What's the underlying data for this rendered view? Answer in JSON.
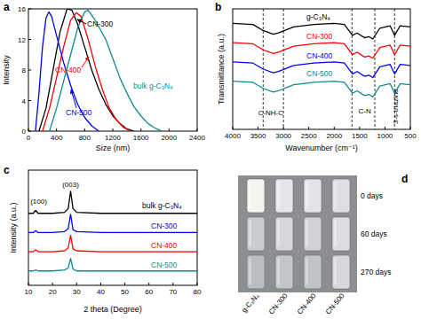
{
  "chart_data": [
    {
      "panel": "a",
      "type": "line",
      "x_label": "Size (nm)",
      "y_label": "Intensity",
      "xlim": [
        0,
        2400
      ],
      "xticks": [
        0,
        400,
        800,
        1200,
        1600,
        2000,
        2400
      ],
      "ylim": [
        0,
        16
      ],
      "yticks": [
        0,
        4,
        8,
        12,
        16
      ],
      "series": [
        {
          "name": "CN-300",
          "color": "#000000",
          "x": [
            150,
            250,
            350,
            450,
            550,
            620,
            700,
            800,
            900,
            1000,
            1100,
            1200,
            1300,
            1400,
            1500
          ],
          "values": [
            0,
            3,
            8,
            13,
            16,
            15.8,
            14,
            11,
            8,
            5.5,
            3.5,
            2,
            1,
            0.3,
            0
          ]
        },
        {
          "name": "CN-400",
          "color": "#ff0000",
          "x": [
            200,
            300,
            400,
            500,
            600,
            680,
            750,
            850,
            950,
            1050,
            1150,
            1250,
            1350,
            1450
          ],
          "values": [
            0,
            3,
            7,
            11,
            14.5,
            15.5,
            15,
            12,
            8.5,
            5.5,
            3,
            1.5,
            0.5,
            0
          ]
        },
        {
          "name": "CN-500",
          "color": "#0000ff",
          "x": [
            100,
            150,
            200,
            250,
            290,
            330,
            400,
            500,
            600,
            700,
            800,
            900,
            1000
          ],
          "values": [
            0,
            5,
            11,
            14.8,
            15.6,
            15,
            12.5,
            9,
            6,
            3.5,
            1.8,
            0.7,
            0
          ]
        },
        {
          "name": "bulk g-C₃N₄",
          "color": "#0f8a8a",
          "x": [
            300,
            400,
            500,
            600,
            700,
            800,
            850,
            950,
            1100,
            1200,
            1300,
            1400,
            1500,
            1600,
            1700,
            1800,
            1900
          ],
          "values": [
            0,
            3,
            6.5,
            10,
            13.5,
            15.6,
            15.8,
            14.5,
            12,
            9.5,
            7,
            5,
            3.2,
            2,
            1,
            0.4,
            0
          ]
        }
      ]
    },
    {
      "panel": "b",
      "type": "line",
      "x_label": "Wavenumber (cm⁻¹)",
      "y_label": "Transmittance (a.u.)",
      "xlim": [
        4000,
        500
      ],
      "xticks": [
        4000,
        3500,
        3000,
        2500,
        2000,
        1500,
        1000,
        500
      ],
      "ylim": [
        0,
        100
      ],
      "tick_labels": "x",
      "x": [
        4000,
        3600,
        3400,
        3200,
        3100,
        2800,
        2400,
        2000,
        1800,
        1640,
        1550,
        1400,
        1320,
        1240,
        1100,
        900,
        810,
        700,
        500
      ],
      "reference_lines": [
        3400,
        3000,
        1650,
        1200,
        810
      ],
      "annotations": [
        {
          "text": "C-NH-C",
          "x": 3250
        },
        {
          "text": "C-N",
          "x": 1400
        },
        {
          "text": "3-s-triazine",
          "x": 810
        }
      ],
      "series": [
        {
          "name": "g-C₃N₄",
          "color": "#000000",
          "values": [
            88,
            87,
            82,
            79,
            80,
            85,
            87,
            88,
            87,
            78,
            80,
            76,
            77,
            75,
            84,
            86,
            78,
            86,
            85
          ]
        },
        {
          "name": "CN-300",
          "color": "#ff0000",
          "values": [
            72,
            71,
            66,
            63,
            64,
            69,
            71,
            72,
            71,
            62,
            64,
            60,
            61,
            59,
            68,
            70,
            62,
            70,
            69
          ]
        },
        {
          "name": "CN-400",
          "color": "#0000ff",
          "values": [
            56,
            55,
            50,
            47,
            48,
            53,
            55,
            56,
            55,
            46,
            48,
            44,
            45,
            43,
            52,
            54,
            46,
            54,
            53
          ]
        },
        {
          "name": "CN-500",
          "color": "#0f8a8a",
          "values": [
            40,
            39,
            34,
            31,
            32,
            37,
            39,
            40,
            39,
            30,
            32,
            28,
            29,
            27,
            36,
            38,
            30,
            38,
            37
          ]
        }
      ]
    },
    {
      "panel": "c",
      "type": "line",
      "x_label": "2 theta (Degree)",
      "y_label": "Intensity (a.u.)",
      "xlim": [
        10,
        80
      ],
      "xticks": [
        10,
        20,
        30,
        40,
        50,
        60,
        70,
        80
      ],
      "ylim": [
        0,
        120
      ],
      "tick_labels": "x",
      "x": [
        10,
        12,
        13,
        14,
        20,
        25,
        26.5,
        27.5,
        28.5,
        30,
        40,
        50,
        60,
        70,
        80
      ],
      "annotations": [
        {
          "text": "(100)",
          "x": 13
        },
        {
          "text": "(003)",
          "x": 27.5
        }
      ],
      "series": [
        {
          "name": "bulk g-C₃N₄",
          "color": "#000000",
          "values": [
            75,
            75,
            78,
            75,
            75,
            76,
            80,
            98,
            80,
            76,
            75,
            75,
            75,
            75,
            75
          ]
        },
        {
          "name": "CN-300",
          "color": "#0000ff",
          "values": [
            55,
            55,
            57,
            55,
            55,
            56,
            59,
            74,
            58,
            56,
            55,
            55,
            55,
            55,
            55
          ]
        },
        {
          "name": "CN-400",
          "color": "#ff0000",
          "values": [
            35,
            35,
            37,
            35,
            35,
            36,
            39,
            52,
            38,
            36,
            35,
            35,
            35,
            35,
            35
          ]
        },
        {
          "name": "CN-500",
          "color": "#0f8a8a",
          "values": [
            15,
            15,
            16,
            15,
            15,
            16,
            18,
            28,
            17,
            15,
            15,
            15,
            15,
            15,
            15
          ]
        }
      ]
    }
  ],
  "panel_d": {
    "panel": "d",
    "row_labels": [
      "0 days",
      "60 days",
      "270 days"
    ],
    "column_labels": [
      "g-C₃N₄",
      "CN-300",
      "CN-400",
      "CN-500"
    ]
  }
}
